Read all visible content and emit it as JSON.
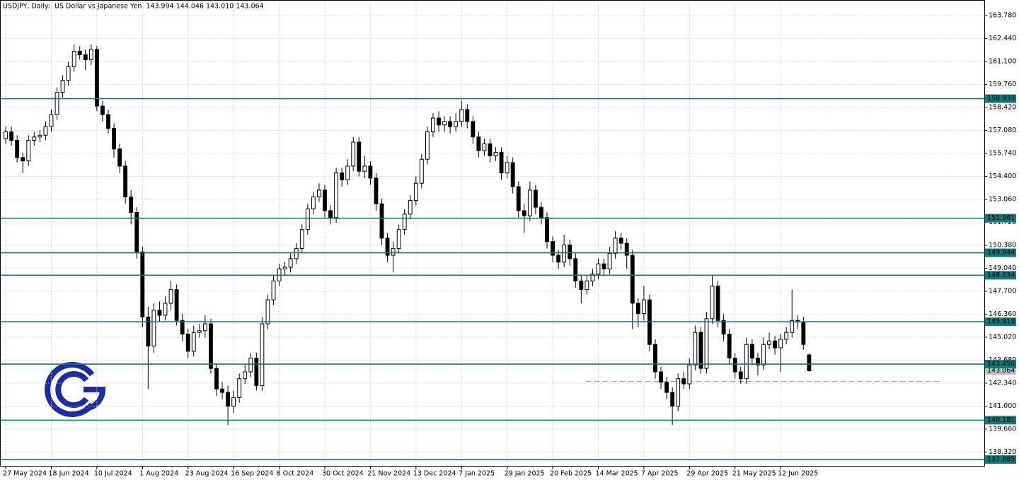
{
  "chart_data": {
    "type": "candlestick",
    "title": "USDJPY, Daily:  US Dollar vs Japanese Yen  143.994 144.046 143.010 143.064",
    "open": [
      156.6,
      157.0,
      156.5,
      155.5,
      155.3,
      156.5,
      156.7,
      156.8,
      157.3,
      158.0,
      159.3,
      160.0,
      160.8,
      161.7,
      161.5,
      161.2,
      161.8,
      158.5,
      158.0,
      157.2,
      156.0,
      155.0,
      153.2,
      152.3,
      150.0,
      146.2,
      144.5,
      146.6,
      146.3,
      147.0,
      147.8,
      146.0,
      145.2,
      144.2,
      145.3,
      145.4,
      145.8,
      143.2,
      142.0,
      141.8,
      141.0,
      141.5,
      142.6,
      143.0,
      143.8,
      142.2,
      145.8,
      147.2,
      148.3,
      149.0,
      149.1,
      149.6,
      150.2,
      151.3,
      152.5,
      153.2,
      153.6,
      152.4,
      152.0,
      154.6,
      154.2,
      155.0,
      156.4,
      154.7,
      155.0,
      154.3,
      152.8,
      150.8,
      149.8,
      150.2,
      151.3,
      152.2,
      153.0,
      154.0,
      155.4,
      157.0,
      157.8,
      157.4,
      157.6,
      157.3,
      157.6,
      158.3,
      157.6,
      156.7,
      155.9,
      156.3,
      155.6,
      155.8,
      154.6,
      155.2,
      153.8,
      152.4,
      152.1,
      153.6,
      152.6,
      152.0,
      150.6,
      149.8,
      149.4,
      150.4,
      149.6,
      148.3,
      147.8,
      148.3,
      148.7,
      149.3,
      149.0,
      149.9,
      150.8,
      150.5,
      149.8,
      147.0,
      146.4,
      147.2,
      144.6,
      143.0,
      142.4,
      141.8,
      141.0,
      142.6,
      142.3,
      143.4,
      145.3,
      143.2,
      146.1,
      148.0,
      146.0,
      145.2,
      143.8,
      143.0,
      142.6,
      144.6,
      143.8,
      143.4,
      144.6,
      144.8,
      144.4,
      144.9,
      145.3,
      146.0,
      145.9,
      143.994
    ],
    "high": [
      157.3,
      157.3,
      156.8,
      155.8,
      156.8,
      157.0,
      157.1,
      157.6,
      158.3,
      159.6,
      160.3,
      161.1,
      162.1,
      162.0,
      161.8,
      162.1,
      162.0,
      158.8,
      158.3,
      157.5,
      156.3,
      155.3,
      153.6,
      152.6,
      150.3,
      146.8,
      147.0,
      147.1,
      147.4,
      148.3,
      148.1,
      146.4,
      145.5,
      145.7,
      145.8,
      146.3,
      146.1,
      143.5,
      142.4,
      142.2,
      141.9,
      142.9,
      143.4,
      144.1,
      144.1,
      146.2,
      147.5,
      148.6,
      149.3,
      149.4,
      149.9,
      150.5,
      151.6,
      152.8,
      153.5,
      154.0,
      153.9,
      152.7,
      154.9,
      154.9,
      155.4,
      156.7,
      156.7,
      155.6,
      155.3,
      154.6,
      153.1,
      151.1,
      150.6,
      151.6,
      152.5,
      153.3,
      154.4,
      155.7,
      157.3,
      158.1,
      158.2,
      157.9,
      157.9,
      158.1,
      158.8,
      158.6,
      157.9,
      157.0,
      156.6,
      156.6,
      156.1,
      156.1,
      155.6,
      155.5,
      154.1,
      152.8,
      154.1,
      153.9,
      152.9,
      152.3,
      150.9,
      150.1,
      151.0,
      150.7,
      149.9,
      148.6,
      148.6,
      149.0,
      149.6,
      149.6,
      150.3,
      151.2,
      151.1,
      150.8,
      150.1,
      147.3,
      148.0,
      147.5,
      144.9,
      143.3,
      142.7,
      142.1,
      142.9,
      143.0,
      143.8,
      145.7,
      145.6,
      146.5,
      148.6,
      148.3,
      146.4,
      145.5,
      144.1,
      143.3,
      145.0,
      144.9,
      144.1,
      145.0,
      145.3,
      145.1,
      145.2,
      145.6,
      147.8,
      146.3,
      146.2,
      144.046
    ],
    "low": [
      156.3,
      156.2,
      155.2,
      154.6,
      155.0,
      156.2,
      156.4,
      156.5,
      157.0,
      157.7,
      159.0,
      159.7,
      160.5,
      161.2,
      160.6,
      160.9,
      158.2,
      157.6,
      156.9,
      155.5,
      154.6,
      152.8,
      151.6,
      149.6,
      145.6,
      142.0,
      144.1,
      145.9,
      146.0,
      146.6,
      145.7,
      144.8,
      143.8,
      143.9,
      145.0,
      145.0,
      142.9,
      141.6,
      141.4,
      139.9,
      140.6,
      141.2,
      142.3,
      142.7,
      141.9,
      141.9,
      145.5,
      146.9,
      148.0,
      148.6,
      148.8,
      149.3,
      149.9,
      151.0,
      152.2,
      152.9,
      152.0,
      151.6,
      151.7,
      153.8,
      153.9,
      154.7,
      154.4,
      154.3,
      153.9,
      152.4,
      150.4,
      149.4,
      148.8,
      149.9,
      151.0,
      151.9,
      152.7,
      153.7,
      155.1,
      156.7,
      157.0,
      157.0,
      156.9,
      157.0,
      157.3,
      157.2,
      156.3,
      155.5,
      155.6,
      155.2,
      155.3,
      154.2,
      154.3,
      153.4,
      152.0,
      151.1,
      151.8,
      152.2,
      151.6,
      150.2,
      149.4,
      149.0,
      149.1,
      149.2,
      147.9,
      147.0,
      147.5,
      148.0,
      148.4,
      148.6,
      148.7,
      149.6,
      150.1,
      149.0,
      145.5,
      145.6,
      146.0,
      144.2,
      142.6,
      142.0,
      141.4,
      139.9,
      140.7,
      142.0,
      142.0,
      143.1,
      142.9,
      142.9,
      145.8,
      145.6,
      144.8,
      143.4,
      142.6,
      142.3,
      142.3,
      143.4,
      142.8,
      143.1,
      144.3,
      144.0,
      143.0,
      144.6,
      145.0,
      145.5,
      144.3,
      143.01
    ],
    "close": [
      157.0,
      156.5,
      155.5,
      155.3,
      156.5,
      156.7,
      156.8,
      157.3,
      158.0,
      159.3,
      160.0,
      160.8,
      161.7,
      161.5,
      161.2,
      161.8,
      158.5,
      158.0,
      157.2,
      156.0,
      155.0,
      153.2,
      152.3,
      150.0,
      146.2,
      144.5,
      146.6,
      146.3,
      147.0,
      147.8,
      146.0,
      145.2,
      144.2,
      145.3,
      145.4,
      145.8,
      143.2,
      142.0,
      141.8,
      141.0,
      141.5,
      142.6,
      143.0,
      143.8,
      142.2,
      145.8,
      147.2,
      148.3,
      149.0,
      149.1,
      149.6,
      150.2,
      151.3,
      152.5,
      153.2,
      153.6,
      152.4,
      152.0,
      154.6,
      154.2,
      155.0,
      156.4,
      154.7,
      155.0,
      154.3,
      152.8,
      150.8,
      149.8,
      150.2,
      151.3,
      152.2,
      153.0,
      154.0,
      155.4,
      157.0,
      157.8,
      157.4,
      157.6,
      157.3,
      157.6,
      158.3,
      157.6,
      156.7,
      155.9,
      156.3,
      155.6,
      155.8,
      154.6,
      155.2,
      153.8,
      152.4,
      152.1,
      153.6,
      152.6,
      152.0,
      150.6,
      149.8,
      149.4,
      150.4,
      149.6,
      148.3,
      147.8,
      148.3,
      148.7,
      149.3,
      149.0,
      149.9,
      150.8,
      150.5,
      149.8,
      147.0,
      146.4,
      147.2,
      144.6,
      143.0,
      142.4,
      141.8,
      141.0,
      142.6,
      142.3,
      143.4,
      145.3,
      143.2,
      146.1,
      148.0,
      146.0,
      145.2,
      143.8,
      143.0,
      142.6,
      144.6,
      143.8,
      143.4,
      144.6,
      144.8,
      144.4,
      144.9,
      145.3,
      146.0,
      145.9,
      144.6,
      143.064
    ],
    "xlim": [
      -1,
      171.75
    ],
    "xticks": [
      {
        "value": 0,
        "label": "27 May 2024"
      },
      {
        "value": 8,
        "label": "18 Jun 2024"
      },
      {
        "value": 16,
        "label": "10 Jul 2024"
      },
      {
        "value": 24,
        "label": "1 Aug 2024"
      },
      {
        "value": 32,
        "label": "23 Aug 2024"
      },
      {
        "value": 40,
        "label": "16 Sep 2024"
      },
      {
        "value": 48,
        "label": "8 Oct 2024"
      },
      {
        "value": 56,
        "label": "30 Oct 2024"
      },
      {
        "value": 64,
        "label": "21 Nov 2024"
      },
      {
        "value": 72,
        "label": "13 Dec 2024"
      },
      {
        "value": 80,
        "label": "7 Jan 2025"
      },
      {
        "value": 88,
        "label": "29 Jan 2025"
      },
      {
        "value": 96,
        "label": "20 Feb 2025"
      },
      {
        "value": 104,
        "label": "14 Mar 2025"
      },
      {
        "value": 112,
        "label": "7 Apr 2025"
      },
      {
        "value": 120,
        "label": "29 Apr 2025"
      },
      {
        "value": 128,
        "label": "21 May 2025"
      },
      {
        "value": 136,
        "label": "12 Jun 2025"
      }
    ],
    "ylim": [
      137.475,
      164.687
    ],
    "yticks": [
      {
        "value": 163.78,
        "label": "163.780"
      },
      {
        "value": 162.44,
        "label": "162.440"
      },
      {
        "value": 161.1,
        "label": "161.100"
      },
      {
        "value": 159.76,
        "label": "159.760"
      },
      {
        "value": 158.42,
        "label": "158.420"
      },
      {
        "value": 157.08,
        "label": "157.080"
      },
      {
        "value": 155.74,
        "label": "155.740"
      },
      {
        "value": 154.4,
        "label": "154.400"
      },
      {
        "value": 153.06,
        "label": "153.060"
      },
      {
        "value": 151.72,
        "label": "151.720"
      },
      {
        "value": 150.38,
        "label": "150.380"
      },
      {
        "value": 149.04,
        "label": "149.040"
      },
      {
        "value": 147.7,
        "label": "147.700"
      },
      {
        "value": 146.36,
        "label": "146.360"
      },
      {
        "value": 145.02,
        "label": "145.020"
      },
      {
        "value": 143.68,
        "label": "143.680"
      },
      {
        "value": 142.34,
        "label": "142.340"
      },
      {
        "value": 141.0,
        "label": "141.000"
      },
      {
        "value": 139.66,
        "label": "139.660"
      },
      {
        "value": 138.32,
        "label": "138.320"
      }
    ],
    "grid": true,
    "up_color": "#ffffff",
    "down_color": "#000000",
    "levels": [
      158.933,
      151.961,
      149.944,
      148.634,
      145.919,
      143.45,
      140.181,
      137.885
    ],
    "level_labels": [
      "158.933",
      "151.961",
      "149.944",
      "148.634",
      "145.919",
      "143.450",
      "140.181",
      "137.885"
    ],
    "level_color": "#16767a",
    "dashed_level": {
      "value": 142.45,
      "x": [
        101.75,
        164.25
      ],
      "color": "#7fb27f"
    }
  }
}
